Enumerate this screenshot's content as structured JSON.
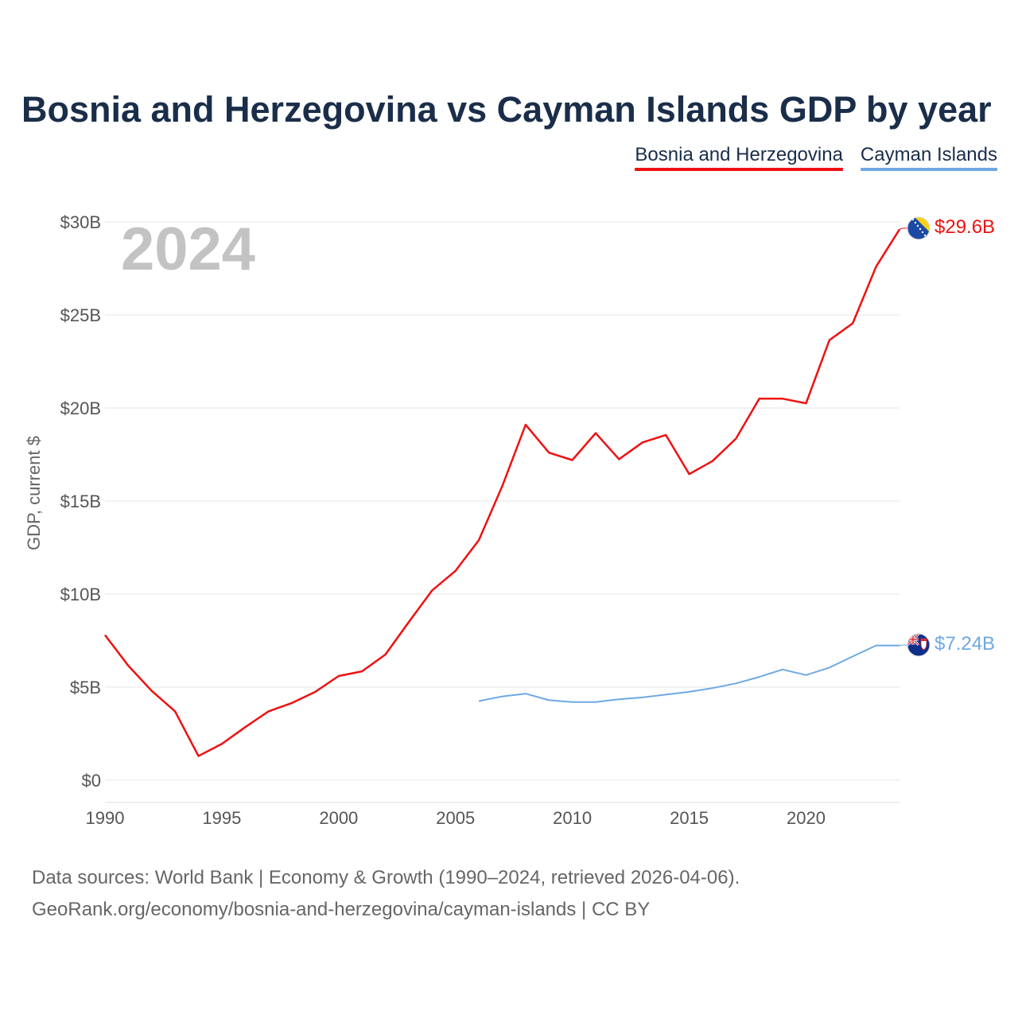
{
  "chart_data": {
    "type": "line",
    "title": "Bosnia and Herzegovina vs Cayman Islands GDP by year",
    "ylabel": "GDP, current $",
    "xlabel": "",
    "year_label": "2024",
    "ylim": [
      0,
      30
    ],
    "xlim": [
      1990,
      2024
    ],
    "y_ticks": [
      0,
      5,
      10,
      15,
      20,
      25,
      30
    ],
    "y_tick_labels": [
      "$0",
      "$5B",
      "$10B",
      "$15B",
      "$20B",
      "$25B",
      "$30B"
    ],
    "x_ticks": [
      1990,
      1995,
      2000,
      2005,
      2010,
      2015,
      2020
    ],
    "x_tick_labels": [
      "1990",
      "1995",
      "2000",
      "2005",
      "2010",
      "2015",
      "2020"
    ],
    "grid": true,
    "legend_position": "top-right",
    "series": [
      {
        "name": "Bosnia and Herzegovina",
        "color": "#ee1111",
        "end_label": "$29.6B",
        "x": [
          1990,
          1991,
          1992,
          1993,
          1994,
          1995,
          1996,
          1997,
          1998,
          1999,
          2000,
          2001,
          2002,
          2003,
          2004,
          2005,
          2006,
          2007,
          2008,
          2009,
          2010,
          2011,
          2012,
          2013,
          2014,
          2015,
          2016,
          2017,
          2018,
          2019,
          2020,
          2021,
          2022,
          2023,
          2024
        ],
        "values": [
          7.8,
          6.15,
          4.8,
          3.7,
          1.3,
          1.95,
          2.85,
          3.7,
          4.15,
          4.75,
          5.6,
          5.85,
          6.75,
          8.5,
          10.2,
          11.25,
          12.9,
          15.8,
          19.1,
          17.6,
          17.2,
          18.65,
          17.25,
          18.15,
          18.55,
          16.45,
          17.15,
          18.35,
          20.5,
          20.5,
          20.25,
          23.65,
          24.55,
          27.6,
          29.6
        ]
      },
      {
        "name": "Cayman Islands",
        "color": "#6ea8e4",
        "end_label": "$7.24B",
        "x": [
          2006,
          2007,
          2008,
          2009,
          2010,
          2011,
          2012,
          2013,
          2014,
          2015,
          2016,
          2017,
          2018,
          2019,
          2020,
          2021,
          2022,
          2023,
          2024
        ],
        "values": [
          4.25,
          4.5,
          4.65,
          4.3,
          4.2,
          4.2,
          4.35,
          4.45,
          4.6,
          4.75,
          4.95,
          5.2,
          5.55,
          5.95,
          5.65,
          6.05,
          6.65,
          7.24,
          7.24
        ]
      }
    ]
  },
  "sources": {
    "line1": "Data sources: World Bank | Economy & Growth (1990–2024, retrieved 2026-04-06).",
    "line2": "GeoRank.org/economy/bosnia-and-herzegovina/cayman-islands | CC BY"
  }
}
